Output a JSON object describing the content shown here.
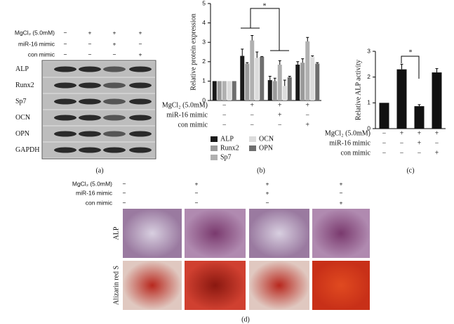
{
  "panels": {
    "a": "(a)",
    "b": "(b)",
    "c": "(c)",
    "d": "(d)"
  },
  "blot": {
    "conditions": [
      {
        "label": "MgCl₂ (5.0mM)",
        "signs": [
          "−",
          "+",
          "+",
          "+"
        ]
      },
      {
        "label": "miR-16 mimic",
        "signs": [
          "−",
          "−",
          "+",
          "−"
        ]
      },
      {
        "label": "con mimic",
        "signs": [
          "−",
          "−",
          "−",
          "+"
        ]
      }
    ],
    "rows": [
      "ALP",
      "Runx2",
      "Sp7",
      "OCN",
      "OPN",
      "GAPDH"
    ]
  },
  "chart_data": [
    {
      "type": "bar",
      "y_label": "Relative protein expression",
      "ylim": [
        0,
        5
      ],
      "yticks": [
        0,
        1,
        2,
        3,
        4,
        5
      ],
      "annotation": "*",
      "conditions": [
        {
          "label": "MgCl₂ (5.0mM)",
          "signs": [
            "−",
            "+",
            "+",
            "+"
          ]
        },
        {
          "label": "miR-16 mimic",
          "signs": [
            "−",
            "−",
            "+",
            "−"
          ]
        },
        {
          "label": "con mimic",
          "signs": [
            "−",
            "−",
            "−",
            "+"
          ]
        }
      ],
      "series": [
        {
          "name": "ALP",
          "color": "#1a1a1a",
          "values": [
            1,
            2.3,
            1.05,
            1.85
          ],
          "errors": [
            0,
            0.35,
            0.2,
            0.15
          ]
        },
        {
          "name": "Runx2",
          "color": "#9a9a9a",
          "values": [
            1,
            1.9,
            1.0,
            1.95
          ],
          "errors": [
            0,
            0.05,
            0.15,
            0.2
          ]
        },
        {
          "name": "Sp7",
          "color": "#b0b0b0",
          "values": [
            1,
            3.1,
            1.85,
            3.05
          ],
          "errors": [
            0,
            0.25,
            0.2,
            0.2
          ]
        },
        {
          "name": "OCN",
          "color": "#dcdcdc",
          "values": [
            1,
            2.2,
            0.75,
            2.25
          ],
          "errors": [
            0,
            0.3,
            0.3,
            0.05
          ]
        },
        {
          "name": "OPN",
          "color": "#6e6e6e",
          "values": [
            1,
            2.25,
            1.2,
            1.9
          ],
          "errors": [
            0,
            0.02,
            0.05,
            0.05
          ]
        }
      ]
    },
    {
      "type": "bar",
      "y_label": "Relative ALP activity",
      "ylim": [
        0,
        3
      ],
      "yticks": [
        0,
        1,
        2,
        3
      ],
      "annotation": "*",
      "conditions": [
        {
          "label": "MgCl₂ (5.0mM)",
          "signs": [
            "−",
            "+",
            "+",
            "+"
          ]
        },
        {
          "label": "miR-16 mimic",
          "signs": [
            "−",
            "−",
            "+",
            "−"
          ]
        },
        {
          "label": "con mimic",
          "signs": [
            "−",
            "−",
            "−",
            "+"
          ]
        }
      ],
      "series": [
        {
          "color": "#111111",
          "values": [
            1,
            2.3,
            0.87,
            2.18
          ],
          "errors": [
            0,
            0.2,
            0.06,
            0.15
          ]
        }
      ]
    }
  ],
  "staining": {
    "conditions": [
      {
        "label": "MgCl₂ (5.0mM)",
        "signs": [
          "−",
          "+",
          "+",
          "+"
        ]
      },
      {
        "label": "miR-16 mimic",
        "signs": [
          "−",
          "−",
          "+",
          "−"
        ]
      },
      {
        "label": "con mimic",
        "signs": [
          "−",
          "−",
          "−",
          "+"
        ]
      }
    ],
    "rows": [
      "ALP",
      "Alizarin red S"
    ]
  }
}
